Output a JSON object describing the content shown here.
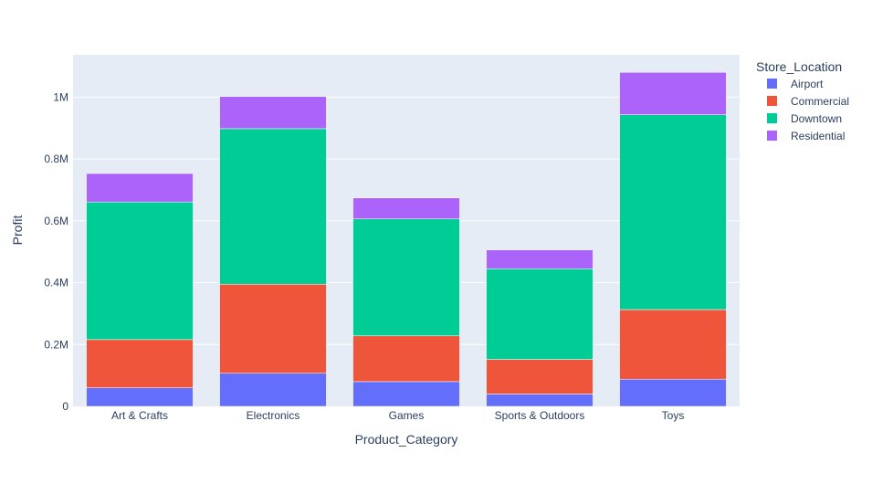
{
  "chart_data": {
    "type": "bar",
    "barmode": "stack",
    "categories": [
      "Art & Crafts",
      "Electronics",
      "Games",
      "Sports & Outdoors",
      "Toys"
    ],
    "series": [
      {
        "name": "Airport",
        "color": "#636efa",
        "values": [
          60000,
          107000,
          80000,
          40000,
          88000
        ]
      },
      {
        "name": "Commercial",
        "color": "#ef553b",
        "values": [
          156000,
          288000,
          148000,
          112000,
          225000
        ]
      },
      {
        "name": "Downtown",
        "color": "#00cc96",
        "values": [
          445000,
          503000,
          378000,
          293000,
          630000
        ]
      },
      {
        "name": "Residential",
        "color": "#ab63fa",
        "values": [
          92000,
          104000,
          68000,
          61000,
          137000
        ]
      }
    ],
    "xlabel": "Product_Category",
    "ylabel": "Profit",
    "ylim": [
      0,
      1136842
    ],
    "yticks": [
      0,
      200000,
      400000,
      600000,
      800000,
      1000000
    ],
    "ytick_labels": [
      "0",
      "0.2M",
      "0.4M",
      "0.6M",
      "0.8M",
      "1M"
    ],
    "legend_title": "Store_Location",
    "legend_position": "top-right",
    "grid": true,
    "plot_background": "#e5ecf6"
  }
}
